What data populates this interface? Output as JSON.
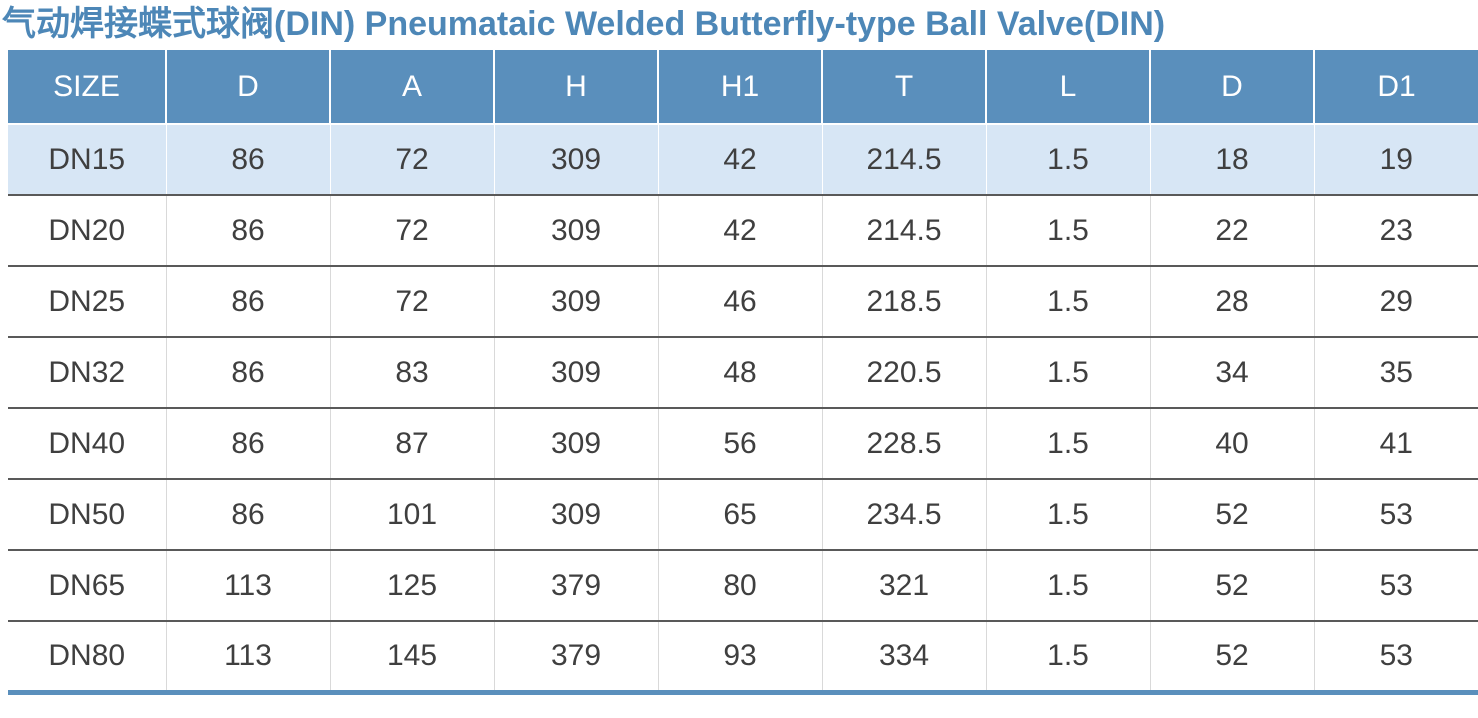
{
  "title": "气动焊接蝶式球阀(DIN) Pneumataic Welded Butterfly-type Ball Valve(DIN)",
  "colors": {
    "title": "#4d87b7",
    "header_bg": "#5a8fbc",
    "highlight_row_bg": "#d7e6f5",
    "cell_text": "#3f3f3f",
    "row_divider": "#595959",
    "column_divider": "#d9d9d9",
    "bottom_rule": "#5a8fbc"
  },
  "table": {
    "headers": [
      "SIZE",
      "D",
      "A",
      "H",
      "H1",
      "T",
      "L",
      "D",
      "D1"
    ],
    "highlighted_row_index": 0,
    "rows": [
      {
        "cells": [
          "DN15",
          "86",
          "72",
          "309",
          "42",
          "214.5",
          "1.5",
          "18",
          "19"
        ]
      },
      {
        "cells": [
          "DN20",
          "86",
          "72",
          "309",
          "42",
          "214.5",
          "1.5",
          "22",
          "23"
        ]
      },
      {
        "cells": [
          "DN25",
          "86",
          "72",
          "309",
          "46",
          "218.5",
          "1.5",
          "28",
          "29"
        ]
      },
      {
        "cells": [
          "DN32",
          "86",
          "83",
          "309",
          "48",
          "220.5",
          "1.5",
          "34",
          "35"
        ]
      },
      {
        "cells": [
          "DN40",
          "86",
          "87",
          "309",
          "56",
          "228.5",
          "1.5",
          "40",
          "41"
        ]
      },
      {
        "cells": [
          "DN50",
          "86",
          "101",
          "309",
          "65",
          "234.5",
          "1.5",
          "52",
          "53"
        ]
      },
      {
        "cells": [
          "DN65",
          "113",
          "125",
          "379",
          "80",
          "321",
          "1.5",
          "52",
          "53"
        ]
      },
      {
        "cells": [
          "DN80",
          "113",
          "145",
          "379",
          "93",
          "334",
          "1.5",
          "52",
          "53"
        ]
      }
    ]
  }
}
